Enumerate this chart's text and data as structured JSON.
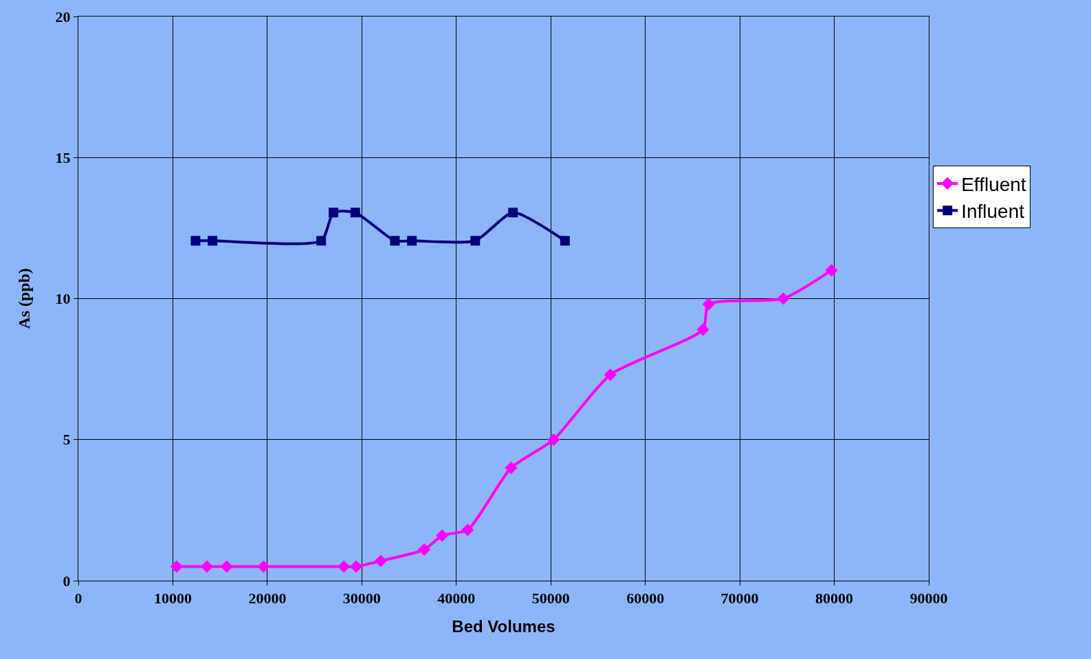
{
  "chart_data": {
    "type": "line",
    "xlabel": "Bed Volumes",
    "ylabel": "As (ppb)",
    "xlim": [
      0,
      90000
    ],
    "xticks": [
      0,
      10000,
      20000,
      30000,
      40000,
      50000,
      60000,
      70000,
      80000,
      90000
    ],
    "ylim": [
      0,
      20
    ],
    "yticks": [
      0,
      5,
      10,
      15,
      20
    ],
    "grid": true,
    "legend": "right",
    "series": [
      {
        "name": "Effluent",
        "color": "#ff00ff",
        "marker": "diamond",
        "x": [
          10400,
          13600,
          15700,
          19600,
          28100,
          29400,
          32000,
          36600,
          38500,
          41200,
          45800,
          50300,
          56300,
          66100,
          66700,
          74600,
          79700
        ],
        "values": [
          0.5,
          0.5,
          0.5,
          0.5,
          0.5,
          0.5,
          0.7,
          1.1,
          1.6,
          1.8,
          4.0,
          5.0,
          7.3,
          8.9,
          9.8,
          10.0,
          11.0
        ]
      },
      {
        "name": "Influent",
        "color": "#000080",
        "marker": "square",
        "x": [
          12400,
          14200,
          25700,
          27000,
          29300,
          33500,
          35300,
          42000,
          46000,
          51500
        ],
        "values": [
          12.05,
          12.05,
          12.05,
          13.05,
          13.05,
          12.05,
          12.05,
          12.05,
          13.05,
          12.05
        ]
      }
    ]
  }
}
